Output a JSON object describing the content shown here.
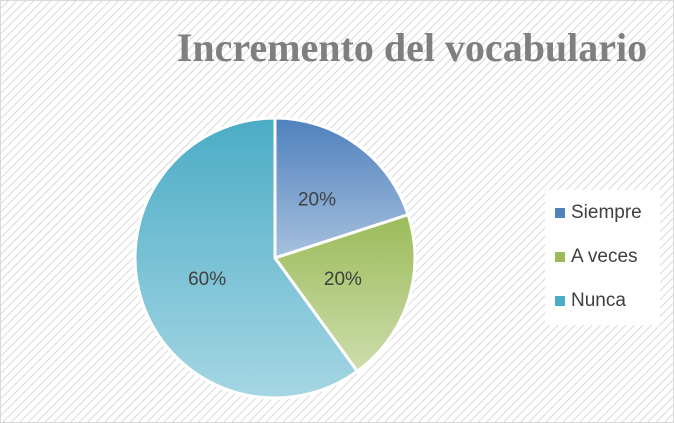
{
  "chart_data": {
    "type": "pie",
    "title": "Incremento del vocabulario",
    "categories": [
      "Siempre",
      "A veces",
      "Nunca"
    ],
    "values": [
      20,
      20,
      60
    ],
    "value_labels": [
      "20%",
      "20%",
      "60%"
    ],
    "colors": [
      "#4f81bd",
      "#9bbb59",
      "#4bacc6"
    ],
    "legend": "right"
  }
}
